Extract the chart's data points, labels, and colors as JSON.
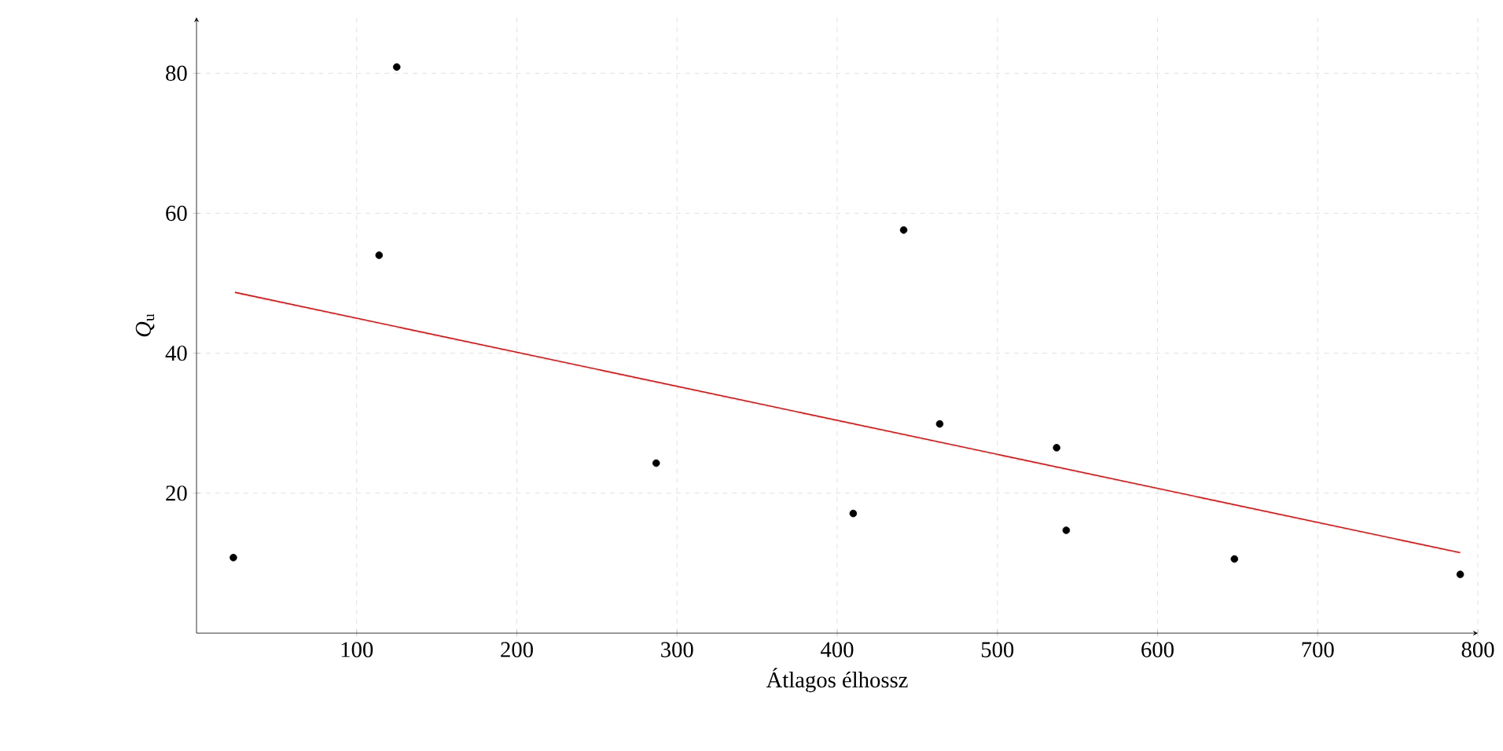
{
  "chart_data": {
    "type": "scatter",
    "xlabel": "Átlagos élhossz",
    "ylabel": "*Q*$_{u}$",
    "xlim": [
      0,
      800
    ],
    "ylim": [
      0,
      88
    ],
    "xticks": [
      100,
      200,
      300,
      400,
      500,
      600,
      700,
      800
    ],
    "yticks": [
      20,
      40,
      60,
      80
    ],
    "grid": true,
    "series": [
      {
        "marker": "circle",
        "color": "#000000",
        "x": [
          23,
          114,
          125,
          287,
          410,
          441.5,
          464,
          537,
          543,
          648,
          789
        ],
        "values": [
          10.8,
          54.0,
          80.9,
          24.3,
          17.1,
          57.6,
          29.9,
          26.5,
          14.7,
          10.6,
          8.4
        ]
      },
      {
        "type": "line",
        "marker": "none",
        "color": "#ff0000",
        "x": [
          24,
          789
        ],
        "values": [
          48.7,
          11.5
        ]
      }
    ]
  }
}
